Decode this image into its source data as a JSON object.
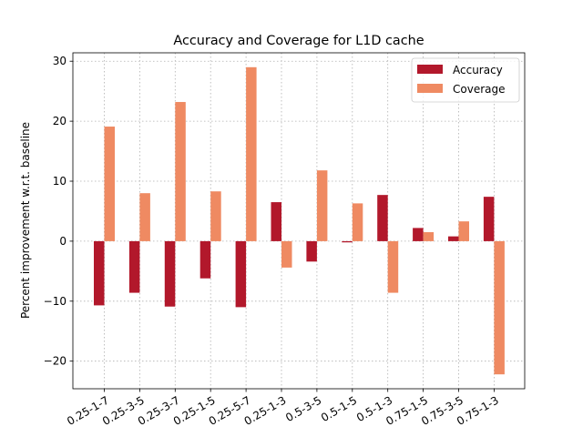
{
  "chart_data": {
    "type": "bar",
    "title": "Accuracy and Coverage for L1D cache",
    "xlabel": "",
    "ylabel": "Percent improvement w.r.t. baseline",
    "ylim": [
      -24.6,
      31.4
    ],
    "yticks": [
      -20,
      -10,
      0,
      10,
      20,
      30
    ],
    "ytick_labels": [
      "−20",
      "−10",
      "0",
      "10",
      "20",
      "30"
    ],
    "grid": true,
    "legend_position": "top-right",
    "categories": [
      "0.25-1-7",
      "0.25-3-5",
      "0.25-3-7",
      "0.25-1-5",
      "0.25-5-7",
      "0.25-1-3",
      "0.5-3-5",
      "0.5-1-5",
      "0.5-1-3",
      "0.75-1-5",
      "0.75-3-5",
      "0.75-1-3"
    ],
    "series": [
      {
        "name": "Accuracy",
        "color": "#b2182b",
        "values": [
          -10.7,
          -8.6,
          -10.9,
          -6.2,
          -11.0,
          6.5,
          -3.4,
          -0.2,
          7.7,
          2.2,
          0.8,
          7.4
        ]
      },
      {
        "name": "Coverage",
        "color": "#ef8a62",
        "values": [
          19.1,
          8.0,
          23.2,
          8.3,
          29.0,
          -4.4,
          11.8,
          6.3,
          -8.6,
          1.5,
          3.3,
          -22.2
        ]
      }
    ]
  }
}
